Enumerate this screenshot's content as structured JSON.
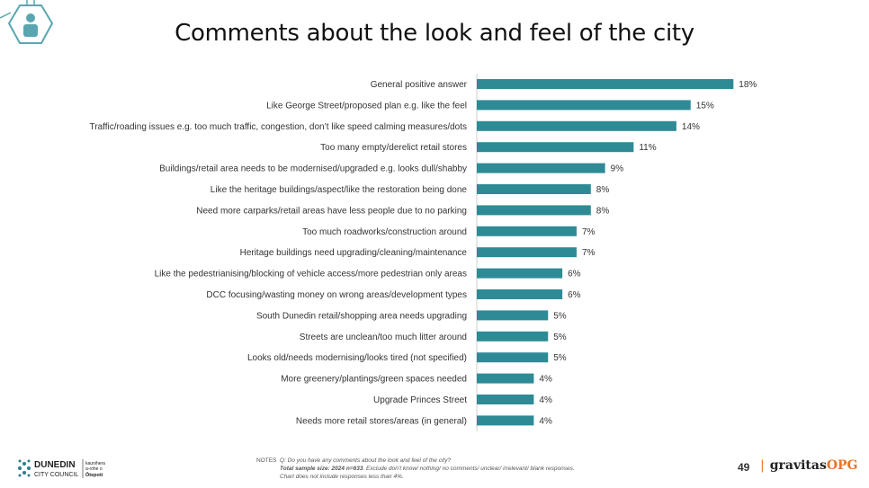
{
  "title": "Comments about the look and feel of the city",
  "chart_data": {
    "type": "bar",
    "orientation": "horizontal",
    "categories": [
      "General positive answer",
      "Like George Street/proposed plan e.g. like the feel",
      "Traffic/roading issues e.g. too much traffic, congestion, don’t like speed calming measures/dots",
      "Too many empty/derelict retail stores",
      "Buildings/retail area needs to be modernised/upgraded e.g. looks dull/shabby",
      "Like the heritage buildings/aspect/like the restoration being done",
      "Need more carparks/retail areas have less people due to no parking",
      "Too much roadworks/construction around",
      "Heritage buildings need upgrading/cleaning/maintenance",
      "Like the pedestrianising/blocking of vehicle access/more pedestrian only areas",
      "DCC focusing/wasting money on wrong areas/development types",
      "South Dunedin retail/shopping area needs upgrading",
      "Streets are unclean/too much litter around",
      "Looks old/needs modernising/looks tired (not specified)",
      "More greenery/plantings/green spaces needed",
      "Upgrade Princes Street",
      "Needs more retail stores/areas (in general)"
    ],
    "values": [
      18,
      15,
      14,
      11,
      9,
      8,
      8,
      7,
      7,
      6,
      6,
      5,
      5,
      5,
      4,
      4,
      4
    ],
    "value_labels": [
      "18%",
      "15%",
      "14%",
      "11%",
      "9%",
      "8%",
      "8%",
      "7%",
      "7%",
      "6%",
      "6%",
      "5%",
      "5%",
      "5%",
      "4%",
      "4%",
      "4%"
    ],
    "xlim": [
      0,
      20
    ],
    "bar_color": "#2e8b96",
    "grid": false,
    "legend": "none"
  },
  "notes": {
    "label": "NOTES",
    "question": "Q: Do you have any comments about the look and feel of the city?",
    "sample_bold": "Total sample size: 2024 n=633",
    "sample_rest": ". Exclude don’t know/ nothing/ no comments/ unclear/ irrelevant/ blank responses.",
    "chart_note": "Chart does not include responses less than 4%."
  },
  "page_number": "49",
  "brand": {
    "sep": "|",
    "name": "gravitas",
    "suffix": "OPG"
  },
  "council_logo": {
    "line1": "DUNEDIN",
    "line2": "CITY COUNCIL",
    "maori1": "kaunihera",
    "maori2": "a-rohe o",
    "maori3": "Ōtepoti"
  },
  "colors": {
    "accent": "#2e8b96",
    "brand_orange": "#e8742a",
    "icon_teal": "#5aa6b0"
  }
}
